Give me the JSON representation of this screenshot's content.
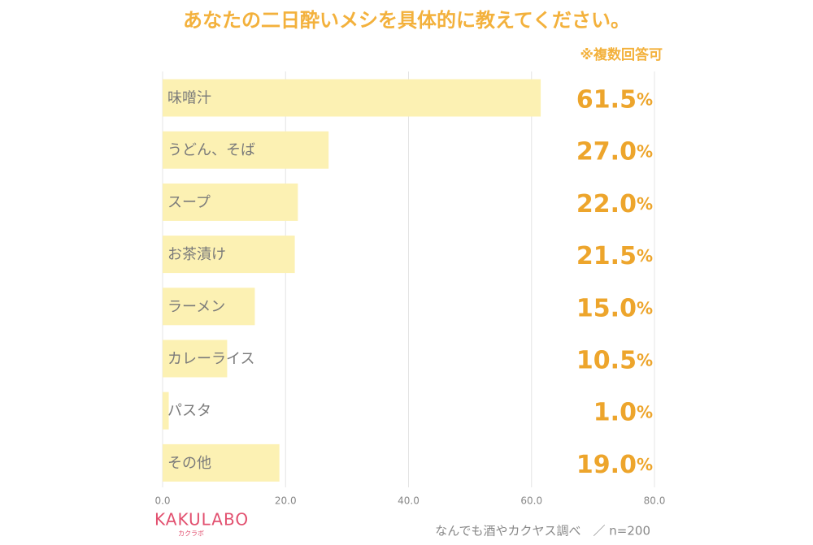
{
  "chart_data": {
    "type": "bar",
    "orientation": "horizontal",
    "title": "あなたの二日酔いメシを具体的に教えてください。",
    "note": "※複数回答可",
    "categories": [
      "味噌汁",
      "うどん、そば",
      "スープ",
      "お茶漬け",
      "ラーメン",
      "カレーライス",
      "パスタ",
      "その他"
    ],
    "values": [
      61.5,
      27.0,
      22.0,
      21.5,
      15.0,
      10.5,
      1.0,
      19.0
    ],
    "value_labels": [
      "61.5%",
      "27.0%",
      "22.0%",
      "21.5%",
      "15.0%",
      "10.5%",
      "1.0%",
      "19.0%"
    ],
    "color": "#fcf1b3",
    "xlim": [
      0,
      80
    ],
    "xticks": [
      {
        "value": 0,
        "label": "0.0"
      },
      {
        "value": 20,
        "label": "20.0"
      },
      {
        "value": 40,
        "label": "40.0"
      },
      {
        "value": 60,
        "label": "60.0"
      },
      {
        "value": 80,
        "label": "80.0"
      }
    ],
    "grid": true,
    "source": "なんでも酒やカクヤス調べ　／ n=200",
    "logo": "KAKULABO",
    "logo_sub": "カクラボ"
  }
}
